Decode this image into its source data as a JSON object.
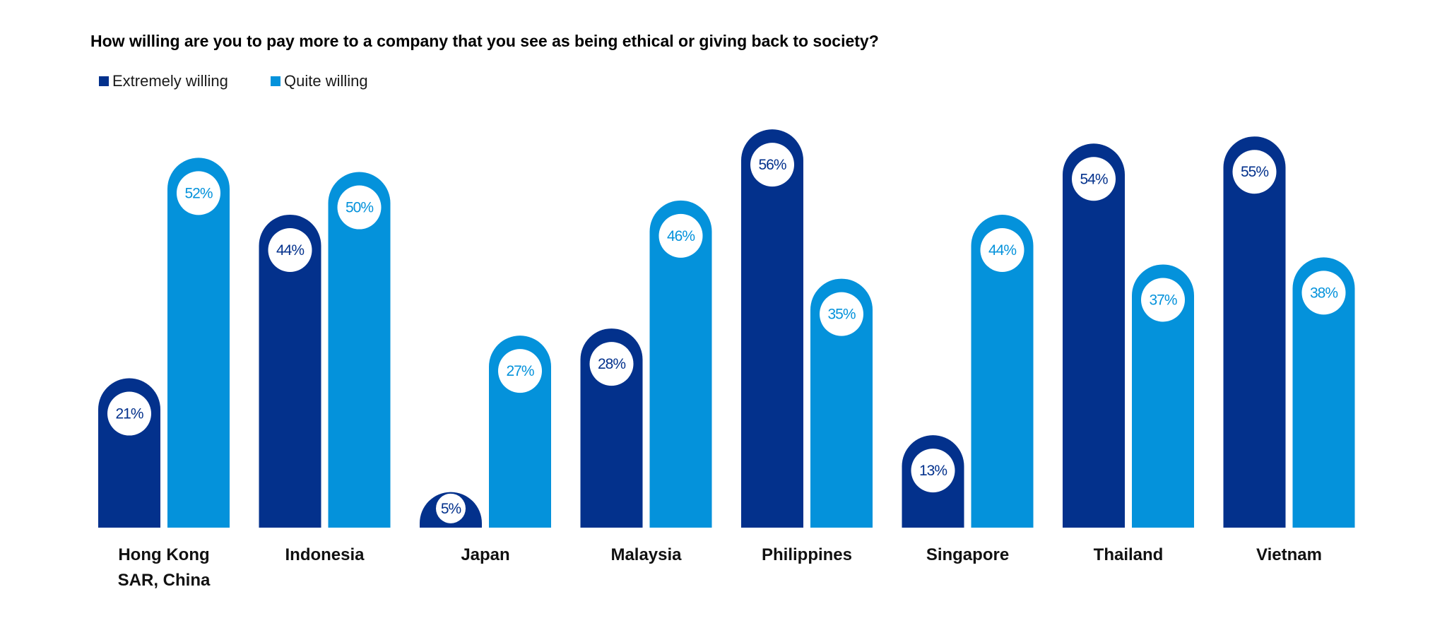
{
  "chart_data": {
    "type": "bar",
    "title": "How willing are you to pay more to a company that you see as being ethical or giving back to society?",
    "categories": [
      [
        "Hong Kong",
        "SAR, China"
      ],
      [
        "Indonesia"
      ],
      [
        "Japan"
      ],
      [
        "Malaysia"
      ],
      [
        "Philippines"
      ],
      [
        "Singapore"
      ],
      [
        "Thailand"
      ],
      [
        "Vietnam"
      ]
    ],
    "series": [
      {
        "name": "Extremely willing",
        "color": "#03318C",
        "values": [
          21,
          44,
          5,
          28,
          56,
          13,
          54,
          55
        ],
        "labels": [
          "21%",
          "44%",
          "5%",
          "28%",
          "56%",
          "13%",
          "54%",
          "55%"
        ]
      },
      {
        "name": "Quite willing",
        "color": "#0492DB",
        "values": [
          52,
          50,
          27,
          46,
          35,
          44,
          37,
          38
        ],
        "labels": [
          "52%",
          "50%",
          "27%",
          "46%",
          "35%",
          "44%",
          "37%",
          "38%"
        ]
      }
    ],
    "ylim": [
      0,
      58
    ],
    "legend_position": "top-left",
    "grid": false
  }
}
